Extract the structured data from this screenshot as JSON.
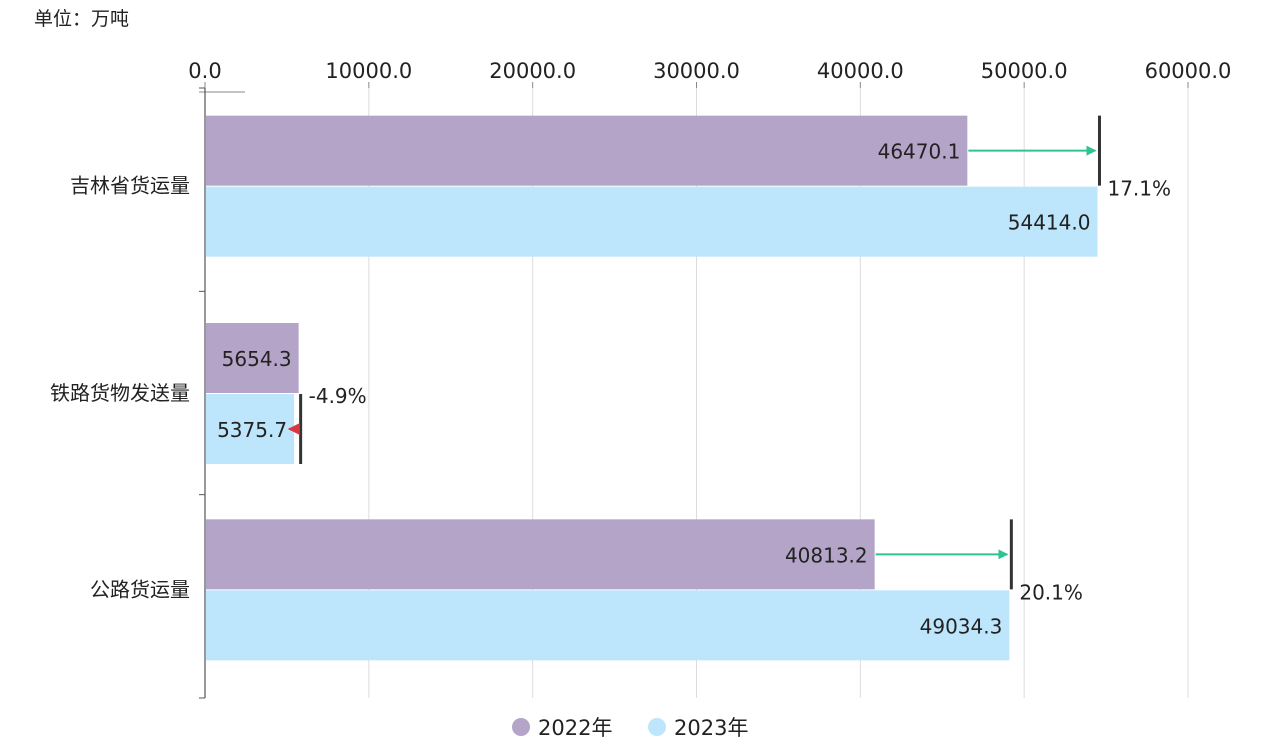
{
  "chart_data": {
    "type": "bar",
    "orientation": "horizontal",
    "unit_label": "单位：万吨",
    "categories": [
      "吉林省货运量",
      "铁路货物发送量",
      "公路货运量"
    ],
    "series": [
      {
        "name": "2022年",
        "color": "#b4a4c8",
        "values": [
          46470.1,
          5654.3,
          40813.2
        ],
        "labels": [
          "46470.1",
          "5654.3",
          "40813.2"
        ]
      },
      {
        "name": "2023年",
        "color": "#bde5fb",
        "values": [
          54414.0,
          5375.7,
          49034.3
        ],
        "labels": [
          "54414.0",
          "5375.7",
          "49034.3"
        ]
      }
    ],
    "changes": [
      "17.1%",
      "-4.9%",
      "20.1%"
    ],
    "increase_color": "#2ec48f",
    "decrease_color": "#d9363e",
    "xlim": [
      0,
      60000
    ],
    "xticks": [
      0,
      10000,
      20000,
      30000,
      40000,
      50000,
      60000
    ],
    "xtick_labels": [
      "0.0",
      "10000.0",
      "20000.0",
      "30000.0",
      "40000.0",
      "50000.0",
      "60000.0"
    ],
    "grid": true,
    "legend_position": "bottom-center"
  }
}
